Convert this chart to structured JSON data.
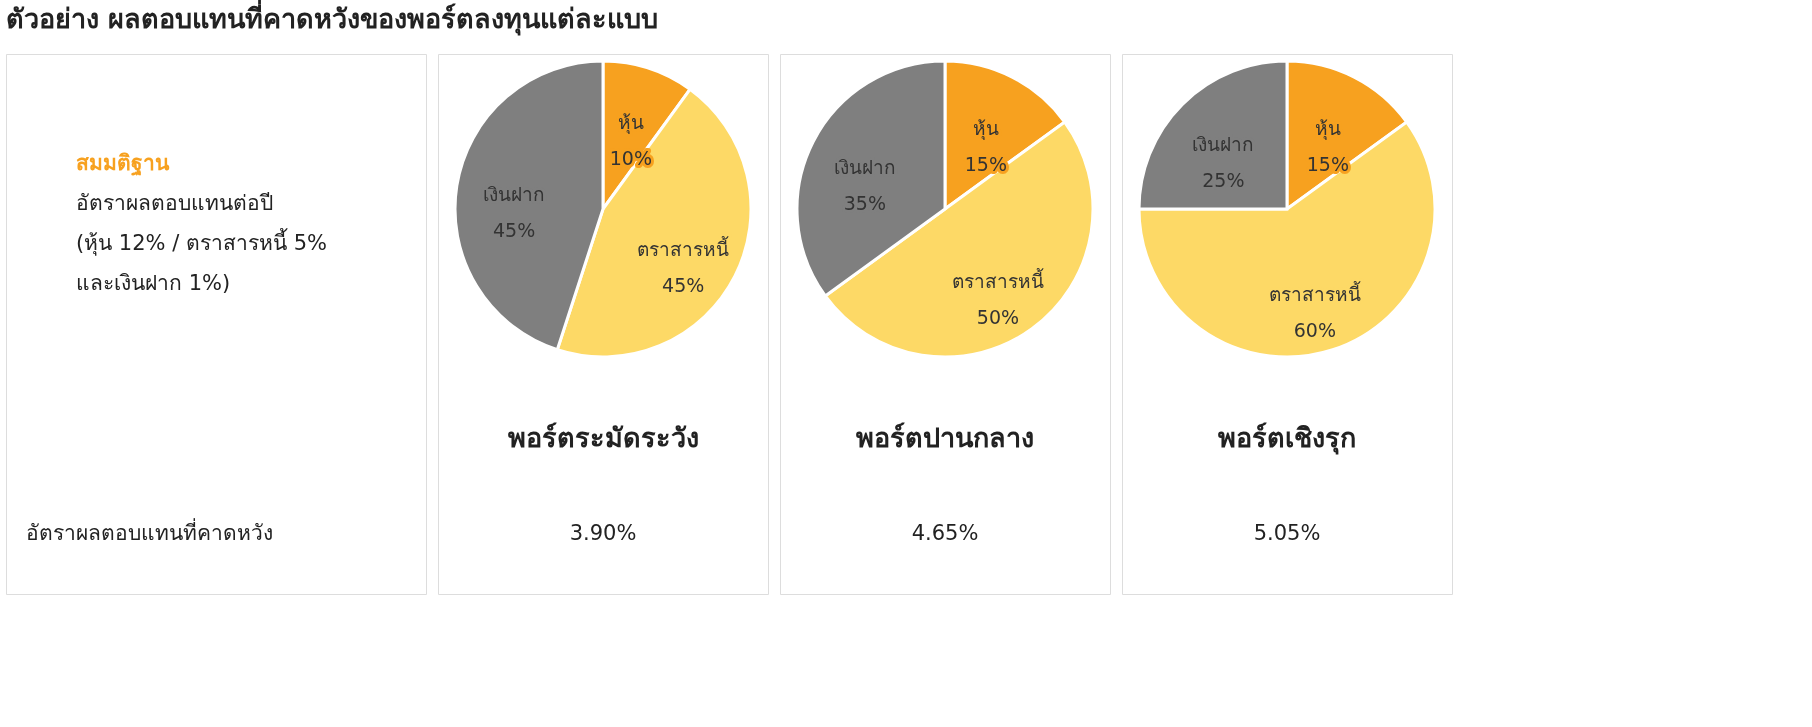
{
  "chart_data": [
    {
      "type": "other",
      "title": "ตัวอย่าง ผลตอบแทนที่คาดหวังของพอร์ตลงทุนแต่ละแบบ",
      "annotations": [
        "สมมติฐาน",
        "อัตราผลตอบแทนต่อปี",
        "(หุ้น 12% / ตราสารหนี้ 5%",
        "และเงินฝาก 1%)",
        "อัตราผลตอบแทนที่คาดหวัง"
      ]
    },
    {
      "type": "pie",
      "title": "พอร์ตระมัดระวัง",
      "categories": [
        "หุ้น",
        "ตราสารหนี้",
        "เงินฝาก"
      ],
      "values": [
        10,
        45,
        45
      ],
      "value_labels": [
        "10%",
        "45%",
        "45%"
      ],
      "colors": [
        "#f7a11f",
        "#fdd966",
        "#7f7f7f"
      ],
      "annotations": [
        "3.90%"
      ]
    },
    {
      "type": "pie",
      "title": "พอร์ตปานกลาง",
      "categories": [
        "หุ้น",
        "ตราสารหนี้",
        "เงินฝาก"
      ],
      "values": [
        15,
        50,
        35
      ],
      "value_labels": [
        "15%",
        "50%",
        "35%"
      ],
      "colors": [
        "#f7a11f",
        "#fdd966",
        "#7f7f7f"
      ],
      "annotations": [
        "4.65%"
      ]
    },
    {
      "type": "pie",
      "title": "พอร์ตเชิงรุก",
      "categories": [
        "หุ้น",
        "ตราสารหนี้",
        "เงินฝาก"
      ],
      "values": [
        15,
        60,
        25
      ],
      "value_labels": [
        "15%",
        "60%",
        "25%"
      ],
      "colors": [
        "#f7a11f",
        "#fdd966",
        "#7f7f7f"
      ],
      "annotations": [
        "5.05%"
      ]
    }
  ]
}
